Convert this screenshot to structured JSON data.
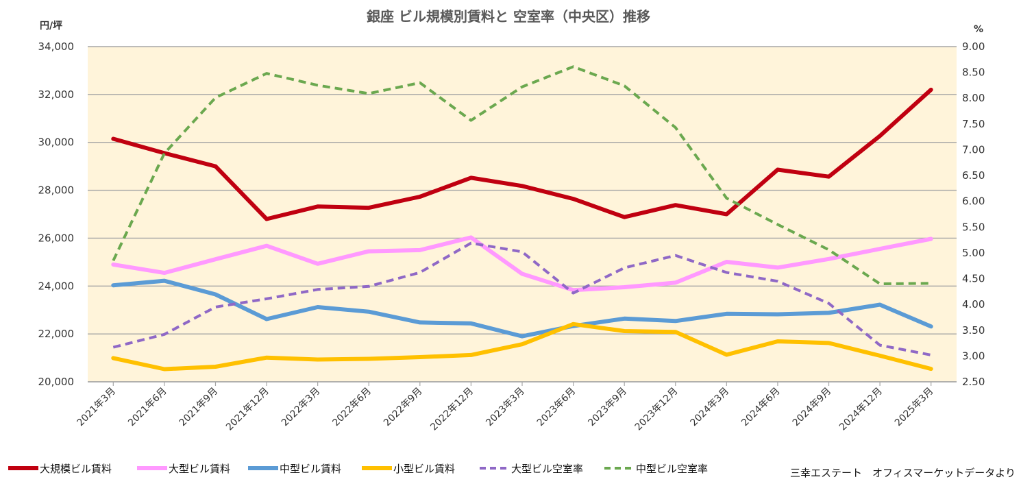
{
  "chart_data": {
    "type": "line",
    "title": "銀座 ビル規模別賃料と 空室率（中央区）推移",
    "y_left_unit": "円/坪",
    "y_right_unit": "%",
    "y_left_range": [
      20000,
      34000
    ],
    "y_left_ticks": [
      "20,000",
      "22,000",
      "24,000",
      "26,000",
      "28,000",
      "30,000",
      "32,000",
      "34,000"
    ],
    "y_left_tick_values": [
      20000,
      22000,
      24000,
      26000,
      28000,
      30000,
      32000,
      34000
    ],
    "y_right_range": [
      2.5,
      9.0
    ],
    "y_right_ticks": [
      "2.50",
      "3.00",
      "3.50",
      "4.00",
      "4.50",
      "5.00",
      "5.50",
      "6.00",
      "6.50",
      "7.00",
      "7.50",
      "8.00",
      "8.50",
      "9.00"
    ],
    "y_right_tick_values": [
      2.5,
      3.0,
      3.5,
      4.0,
      4.5,
      5.0,
      5.5,
      6.0,
      6.5,
      7.0,
      7.5,
      8.0,
      8.5,
      9.0
    ],
    "categories": [
      "2021年3月",
      "2021年6月",
      "2021年9月",
      "2021年12月",
      "2022年3月",
      "2022年6月",
      "2022年9月",
      "2022年12月",
      "2023年3月",
      "2023年6月",
      "2023年9月",
      "2023年12月",
      "2024年3月",
      "2024年6月",
      "2024年9月",
      "2024年12月",
      "2025年3月"
    ],
    "grid": "horizontal",
    "plot_background": "#FFF4DA",
    "legend_position": "bottom",
    "series": [
      {
        "name": "大規模ビル賃料",
        "axis": "left",
        "style": "solid",
        "color": "#C00010",
        "values": [
          30150,
          29550,
          29000,
          26800,
          27320,
          27270,
          27730,
          28520,
          28180,
          27640,
          26880,
          27380,
          27000,
          28860,
          28570,
          30270,
          32200
        ]
      },
      {
        "name": "大型ビル賃料",
        "axis": "left",
        "style": "solid",
        "color": "#FF99FF",
        "values": [
          24900,
          24550,
          25120,
          25680,
          24930,
          25450,
          25500,
          26030,
          24510,
          23830,
          23950,
          24140,
          25010,
          24770,
          25130,
          25550,
          25970
        ]
      },
      {
        "name": "中型ビル賃料",
        "axis": "left",
        "style": "solid",
        "color": "#5B9BD5",
        "values": [
          24030,
          24220,
          23650,
          22620,
          23120,
          22930,
          22480,
          22440,
          21900,
          22330,
          22640,
          22540,
          22840,
          22820,
          22880,
          23220,
          22310
        ]
      },
      {
        "name": "小型ビル賃料",
        "axis": "left",
        "style": "solid",
        "color": "#FFC000",
        "values": [
          20990,
          20530,
          20630,
          21010,
          20930,
          20960,
          21030,
          21120,
          21570,
          22410,
          22120,
          22080,
          21130,
          21690,
          21620,
          21090,
          20540
        ]
      },
      {
        "name": "大型ビル空室率",
        "axis": "right",
        "style": "dashed",
        "color": "#8F68C6",
        "values": [
          3.17,
          3.42,
          3.95,
          4.11,
          4.29,
          4.35,
          4.62,
          5.19,
          5.02,
          4.22,
          4.71,
          4.95,
          4.62,
          4.45,
          4.02,
          3.21,
          3.02
        ]
      },
      {
        "name": "中型ビル空室率",
        "axis": "right",
        "style": "dashed",
        "color": "#6BA84F",
        "values": [
          4.85,
          6.93,
          8.01,
          8.48,
          8.25,
          8.09,
          8.3,
          7.57,
          8.22,
          8.61,
          8.24,
          7.43,
          6.06,
          5.55,
          5.06,
          4.4,
          4.41
        ]
      }
    ]
  },
  "source_note": "三幸エステート　オフィスマーケットデータより"
}
